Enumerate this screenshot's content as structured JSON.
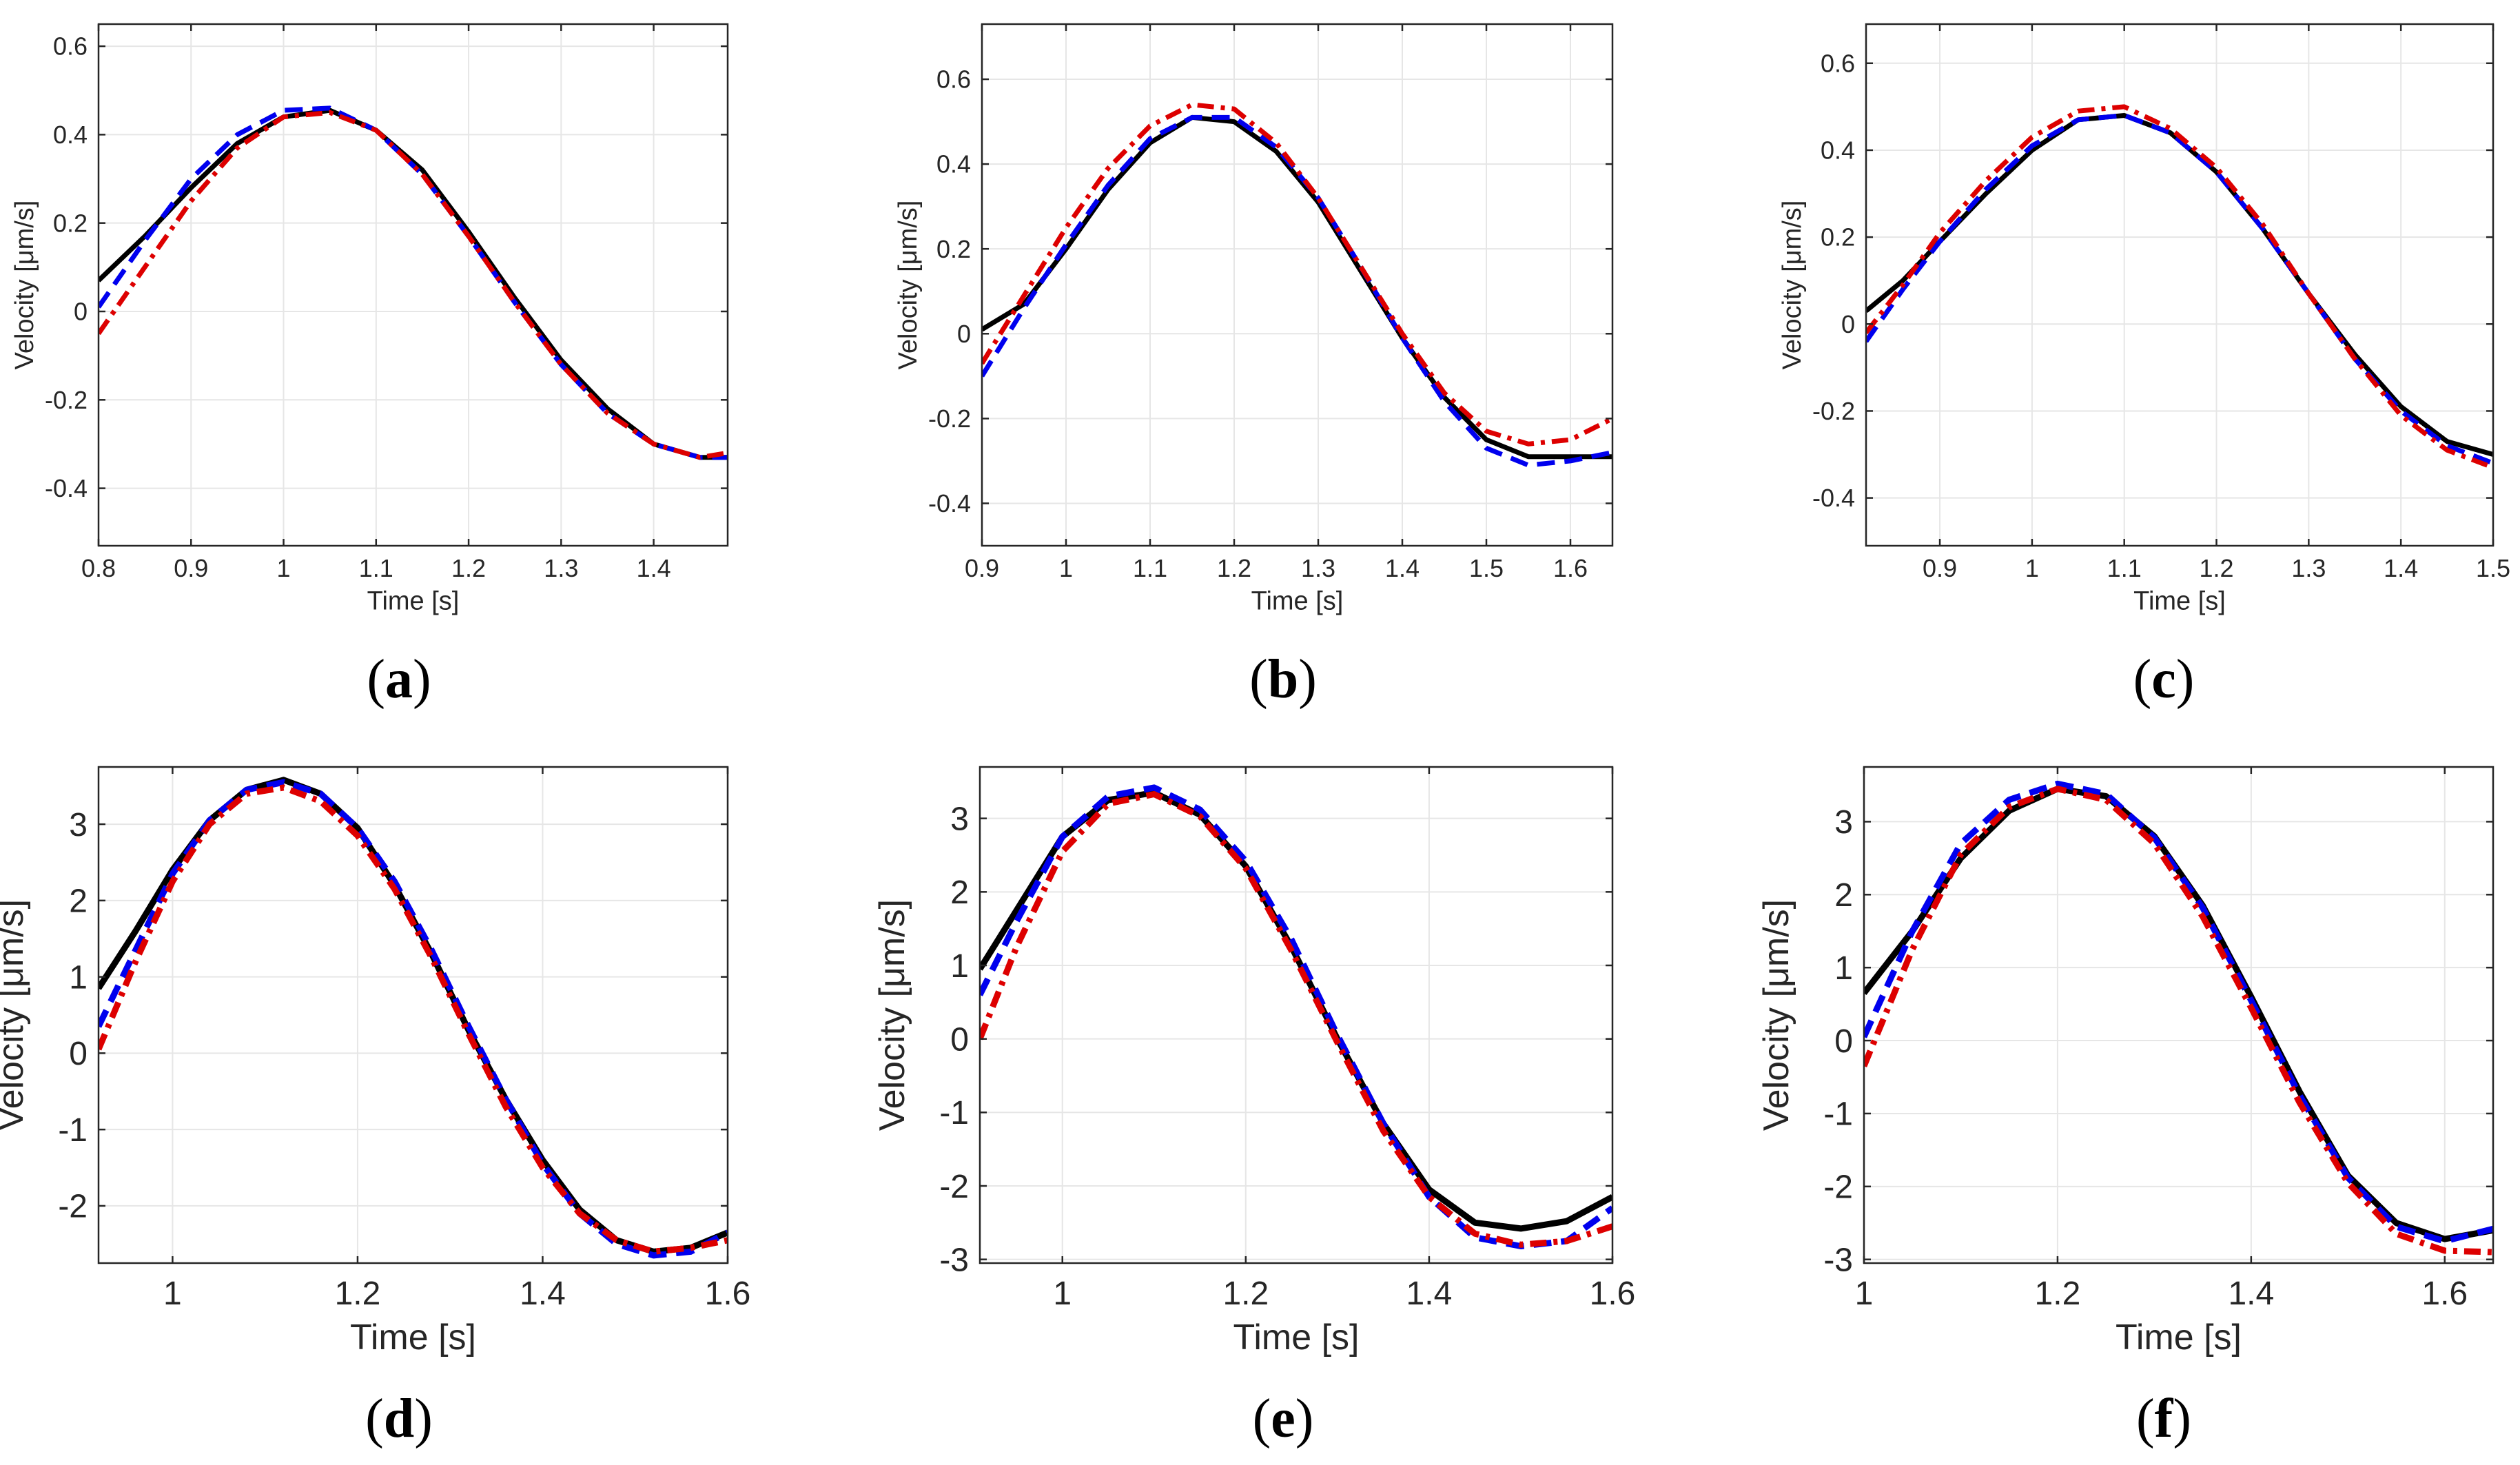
{
  "colors": {
    "black": "#000000",
    "blue": "#0000ee",
    "red": "#dd0000",
    "grid": "#e6e6e6",
    "axis": "#262626"
  },
  "chart_data": [
    {
      "type": "line",
      "label": "a",
      "xlabel": "Time [s]",
      "ylabel": "Velocity [μm/s]",
      "xlim": [
        0.8,
        1.48
      ],
      "ylim": [
        -0.53,
        0.65
      ],
      "xticks": [
        0.8,
        0.9,
        1,
        1.1,
        1.2,
        1.3,
        1.4
      ],
      "xticklabels": [
        "0.8",
        "0.9",
        "1",
        "1.1",
        "1.2",
        "1.3",
        "1.4"
      ],
      "yticks": [
        -0.4,
        -0.2,
        0,
        0.2,
        0.4,
        0.6
      ],
      "yticklabels": [
        "-0.4",
        "-0.2",
        "0",
        "0.2",
        "0.4",
        "0.6"
      ],
      "series": [
        {
          "name": "black-solid",
          "color": "#000000",
          "style": "solid",
          "x": [
            0.8,
            0.85,
            0.9,
            0.95,
            1.0,
            1.05,
            1.1,
            1.15,
            1.2,
            1.25,
            1.3,
            1.35,
            1.4,
            1.45,
            1.48
          ],
          "y": [
            0.07,
            0.17,
            0.28,
            0.38,
            0.44,
            0.455,
            0.41,
            0.32,
            0.18,
            0.03,
            -0.11,
            -0.22,
            -0.3,
            -0.33,
            -0.33
          ]
        },
        {
          "name": "blue-dashed",
          "color": "#0000ee",
          "style": "dashed",
          "x": [
            0.8,
            0.85,
            0.9,
            0.95,
            1.0,
            1.05,
            1.1,
            1.15,
            1.2,
            1.25,
            1.3,
            1.35,
            1.4,
            1.45,
            1.48
          ],
          "y": [
            0.01,
            0.16,
            0.3,
            0.4,
            0.455,
            0.46,
            0.41,
            0.31,
            0.17,
            0.02,
            -0.12,
            -0.23,
            -0.3,
            -0.33,
            -0.33
          ]
        },
        {
          "name": "red-dashdot",
          "color": "#dd0000",
          "style": "dashdot",
          "x": [
            0.8,
            0.85,
            0.9,
            0.95,
            1.0,
            1.05,
            1.1,
            1.15,
            1.2,
            1.25,
            1.3,
            1.35,
            1.4,
            1.45,
            1.48
          ],
          "y": [
            -0.05,
            0.1,
            0.25,
            0.37,
            0.44,
            0.45,
            0.41,
            0.31,
            0.17,
            0.02,
            -0.12,
            -0.23,
            -0.3,
            -0.33,
            -0.32
          ]
        }
      ]
    },
    {
      "type": "line",
      "label": "b",
      "xlabel": "Time [s]",
      "ylabel": "Velocity [μm/s]",
      "xlim": [
        0.9,
        1.65
      ],
      "ylim": [
        -0.5,
        0.73
      ],
      "xticks": [
        0.9,
        1,
        1.1,
        1.2,
        1.3,
        1.4,
        1.5,
        1.6
      ],
      "xticklabels": [
        "0.9",
        "1",
        "1.1",
        "1.2",
        "1.3",
        "1.4",
        "1.5",
        "1.6"
      ],
      "yticks": [
        -0.4,
        -0.2,
        0,
        0.2,
        0.4,
        0.6
      ],
      "yticklabels": [
        "-0.4",
        "-0.2",
        "0",
        "0.2",
        "0.4",
        "0.6"
      ],
      "series": [
        {
          "name": "black-solid",
          "color": "#000000",
          "style": "solid",
          "x": [
            0.9,
            0.95,
            1.0,
            1.05,
            1.1,
            1.15,
            1.2,
            1.25,
            1.3,
            1.35,
            1.4,
            1.45,
            1.5,
            1.55,
            1.6,
            1.65
          ],
          "y": [
            0.01,
            0.07,
            0.2,
            0.34,
            0.45,
            0.51,
            0.5,
            0.43,
            0.31,
            0.15,
            -0.01,
            -0.15,
            -0.25,
            -0.29,
            -0.29,
            -0.29
          ]
        },
        {
          "name": "blue-dashed",
          "color": "#0000ee",
          "style": "dashed",
          "x": [
            0.9,
            0.95,
            1.0,
            1.05,
            1.1,
            1.15,
            1.2,
            1.25,
            1.3,
            1.35,
            1.4,
            1.45,
            1.5,
            1.55,
            1.6,
            1.65
          ],
          "y": [
            -0.1,
            0.06,
            0.21,
            0.35,
            0.46,
            0.51,
            0.51,
            0.44,
            0.32,
            0.16,
            -0.01,
            -0.16,
            -0.27,
            -0.31,
            -0.3,
            -0.28
          ]
        },
        {
          "name": "red-dashdot",
          "color": "#dd0000",
          "style": "dashdot",
          "x": [
            0.9,
            0.95,
            1.0,
            1.05,
            1.1,
            1.15,
            1.2,
            1.25,
            1.3,
            1.35,
            1.4,
            1.45,
            1.5,
            1.55,
            1.6,
            1.65
          ],
          "y": [
            -0.07,
            0.09,
            0.25,
            0.39,
            0.49,
            0.54,
            0.53,
            0.45,
            0.32,
            0.16,
            0.0,
            -0.14,
            -0.23,
            -0.26,
            -0.25,
            -0.2
          ]
        }
      ]
    },
    {
      "type": "line",
      "label": "c",
      "xlabel": "Time [s]",
      "ylabel": "Velocity [μm/s]",
      "xlim": [
        0.82,
        1.5
      ],
      "ylim": [
        -0.51,
        0.69
      ],
      "xticks": [
        0.9,
        1,
        1.1,
        1.2,
        1.3,
        1.4,
        1.5
      ],
      "xticklabels": [
        "0.9",
        "1",
        "1.1",
        "1.2",
        "1.3",
        "1.4",
        "1.5"
      ],
      "yticks": [
        -0.4,
        -0.2,
        0,
        0.2,
        0.4,
        0.6
      ],
      "yticklabels": [
        "-0.4",
        "-0.2",
        "0",
        "0.2",
        "0.4",
        "0.6"
      ],
      "series": [
        {
          "name": "black-solid",
          "color": "#000000",
          "style": "solid",
          "x": [
            0.82,
            0.86,
            0.9,
            0.95,
            1.0,
            1.05,
            1.1,
            1.15,
            1.2,
            1.25,
            1.3,
            1.35,
            1.4,
            1.45,
            1.5
          ],
          "y": [
            0.03,
            0.1,
            0.19,
            0.3,
            0.4,
            0.47,
            0.48,
            0.44,
            0.35,
            0.22,
            0.07,
            -0.07,
            -0.19,
            -0.27,
            -0.3
          ]
        },
        {
          "name": "blue-dashed",
          "color": "#0000ee",
          "style": "dashed",
          "x": [
            0.82,
            0.86,
            0.9,
            0.95,
            1.0,
            1.05,
            1.1,
            1.15,
            1.2,
            1.25,
            1.3,
            1.35,
            1.4,
            1.45,
            1.5
          ],
          "y": [
            -0.04,
            0.08,
            0.19,
            0.31,
            0.41,
            0.47,
            0.48,
            0.44,
            0.35,
            0.22,
            0.07,
            -0.08,
            -0.2,
            -0.28,
            -0.32
          ]
        },
        {
          "name": "red-dashdot",
          "color": "#dd0000",
          "style": "dashdot",
          "x": [
            0.82,
            0.86,
            0.9,
            0.95,
            1.0,
            1.05,
            1.1,
            1.15,
            1.2,
            1.25,
            1.3,
            1.35,
            1.4,
            1.45,
            1.5
          ],
          "y": [
            -0.02,
            0.09,
            0.21,
            0.33,
            0.43,
            0.49,
            0.5,
            0.45,
            0.36,
            0.23,
            0.07,
            -0.08,
            -0.21,
            -0.29,
            -0.33
          ]
        }
      ]
    },
    {
      "type": "line",
      "label": "d",
      "xlabel": "Time [s]",
      "ylabel": "Velocity [μm/s]",
      "xlim": [
        0.92,
        1.6
      ],
      "ylim": [
        -2.75,
        3.75
      ],
      "xticks": [
        1,
        1.2,
        1.4,
        1.6
      ],
      "xticklabels": [
        "1",
        "1.2",
        "1.4",
        "1.6"
      ],
      "yticks": [
        -2,
        -1,
        0,
        1,
        2,
        3
      ],
      "yticklabels": [
        "-2",
        "-1",
        "0",
        "1",
        "2",
        "3"
      ],
      "series": [
        {
          "name": "black-solid",
          "color": "#000000",
          "style": "solid",
          "x": [
            0.92,
            0.96,
            1.0,
            1.04,
            1.08,
            1.12,
            1.16,
            1.2,
            1.24,
            1.28,
            1.32,
            1.36,
            1.4,
            1.44,
            1.48,
            1.52,
            1.56,
            1.6
          ],
          "y": [
            0.85,
            1.6,
            2.4,
            3.05,
            3.45,
            3.58,
            3.4,
            2.95,
            2.2,
            1.3,
            0.3,
            -0.6,
            -1.4,
            -2.05,
            -2.45,
            -2.6,
            -2.55,
            -2.35
          ]
        },
        {
          "name": "blue-dashed",
          "color": "#0000ee",
          "style": "dashed",
          "x": [
            0.92,
            0.96,
            1.0,
            1.04,
            1.08,
            1.12,
            1.16,
            1.2,
            1.24,
            1.28,
            1.32,
            1.36,
            1.4,
            1.44,
            1.48,
            1.52,
            1.56,
            1.6
          ],
          "y": [
            0.35,
            1.35,
            2.35,
            3.05,
            3.45,
            3.55,
            3.4,
            2.95,
            2.25,
            1.35,
            0.35,
            -0.6,
            -1.45,
            -2.1,
            -2.5,
            -2.65,
            -2.6,
            -2.35
          ]
        },
        {
          "name": "red-dashdot",
          "color": "#dd0000",
          "style": "dashdot",
          "x": [
            0.92,
            0.96,
            1.0,
            1.04,
            1.08,
            1.12,
            1.16,
            1.2,
            1.24,
            1.28,
            1.32,
            1.36,
            1.4,
            1.44,
            1.48,
            1.52,
            1.56,
            1.6
          ],
          "y": [
            0.05,
            1.2,
            2.25,
            3.0,
            3.4,
            3.48,
            3.3,
            2.85,
            2.15,
            1.25,
            0.25,
            -0.7,
            -1.5,
            -2.1,
            -2.45,
            -2.6,
            -2.55,
            -2.45
          ]
        }
      ]
    },
    {
      "type": "line",
      "label": "e",
      "xlabel": "Time [s]",
      "ylabel": "Velocity [μm/s]",
      "xlim": [
        0.91,
        1.6
      ],
      "ylim": [
        -3.05,
        3.7
      ],
      "xticks": [
        1,
        1.2,
        1.4,
        1.6
      ],
      "xticklabels": [
        "1",
        "1.2",
        "1.4",
        "1.6"
      ],
      "yticks": [
        -3,
        -2,
        -1,
        0,
        1,
        2,
        3
      ],
      "yticklabels": [
        "-3",
        "-2",
        "-1",
        "0",
        "1",
        "2",
        "3"
      ],
      "series": [
        {
          "name": "black-solid",
          "color": "#000000",
          "style": "solid",
          "x": [
            0.91,
            0.95,
            1.0,
            1.05,
            1.1,
            1.15,
            1.2,
            1.25,
            1.3,
            1.35,
            1.4,
            1.45,
            1.5,
            1.55,
            1.6
          ],
          "y": [
            0.95,
            1.75,
            2.75,
            3.25,
            3.35,
            3.05,
            2.35,
            1.25,
            0.0,
            -1.15,
            -2.05,
            -2.5,
            -2.58,
            -2.48,
            -2.15
          ]
        },
        {
          "name": "blue-dashed",
          "color": "#0000ee",
          "style": "dashed",
          "x": [
            0.91,
            0.95,
            1.0,
            1.05,
            1.1,
            1.15,
            1.2,
            1.25,
            1.3,
            1.35,
            1.4,
            1.45,
            1.5,
            1.55,
            1.6
          ],
          "y": [
            0.6,
            1.6,
            2.75,
            3.3,
            3.42,
            3.12,
            2.42,
            1.35,
            0.05,
            -1.15,
            -2.15,
            -2.7,
            -2.82,
            -2.75,
            -2.3
          ]
        },
        {
          "name": "red-dashdot",
          "color": "#dd0000",
          "style": "dashdot",
          "x": [
            0.91,
            0.95,
            1.0,
            1.05,
            1.1,
            1.15,
            1.2,
            1.25,
            1.3,
            1.35,
            1.4,
            1.45,
            1.5,
            1.55,
            1.6
          ],
          "y": [
            0.0,
            1.25,
            2.55,
            3.2,
            3.33,
            3.03,
            2.32,
            1.2,
            -0.05,
            -1.25,
            -2.15,
            -2.65,
            -2.8,
            -2.75,
            -2.55
          ]
        }
      ]
    },
    {
      "type": "line",
      "label": "f",
      "xlabel": "Time [s]",
      "ylabel": "Velocity [μm/s]",
      "xlim": [
        1.0,
        1.65
      ],
      "ylim": [
        -3.05,
        3.75
      ],
      "xticks": [
        1,
        1.2,
        1.4,
        1.6
      ],
      "xticklabels": [
        "1",
        "1.2",
        "1.4",
        "1.6"
      ],
      "yticks": [
        -3,
        -2,
        -1,
        0,
        1,
        2,
        3
      ],
      "yticklabels": [
        "-3",
        "-2",
        "-1",
        "0",
        "1",
        "2",
        "3"
      ],
      "series": [
        {
          "name": "black-solid",
          "color": "#000000",
          "style": "solid",
          "x": [
            1.0,
            1.05,
            1.1,
            1.15,
            1.2,
            1.25,
            1.3,
            1.35,
            1.4,
            1.45,
            1.5,
            1.55,
            1.6,
            1.65
          ],
          "y": [
            0.65,
            1.5,
            2.5,
            3.15,
            3.45,
            3.35,
            2.8,
            1.85,
            0.6,
            -0.7,
            -1.85,
            -2.5,
            -2.72,
            -2.6
          ]
        },
        {
          "name": "blue-dashed",
          "color": "#0000ee",
          "style": "dashed",
          "x": [
            1.0,
            1.05,
            1.1,
            1.15,
            1.2,
            1.25,
            1.3,
            1.35,
            1.4,
            1.45,
            1.5,
            1.55,
            1.6,
            1.65
          ],
          "y": [
            0.05,
            1.5,
            2.7,
            3.3,
            3.52,
            3.38,
            2.78,
            1.82,
            0.55,
            -0.75,
            -1.88,
            -2.55,
            -2.75,
            -2.58
          ]
        },
        {
          "name": "red-dashdot",
          "color": "#dd0000",
          "style": "dashdot",
          "x": [
            1.0,
            1.05,
            1.1,
            1.15,
            1.2,
            1.25,
            1.3,
            1.35,
            1.4,
            1.45,
            1.5,
            1.55,
            1.6,
            1.65
          ],
          "y": [
            -0.35,
            1.25,
            2.55,
            3.2,
            3.45,
            3.3,
            2.7,
            1.7,
            0.45,
            -0.85,
            -1.95,
            -2.65,
            -2.88,
            -2.9
          ]
        }
      ]
    }
  ],
  "panel_labels": [
    "a",
    "b",
    "c",
    "d",
    "e",
    "f"
  ]
}
